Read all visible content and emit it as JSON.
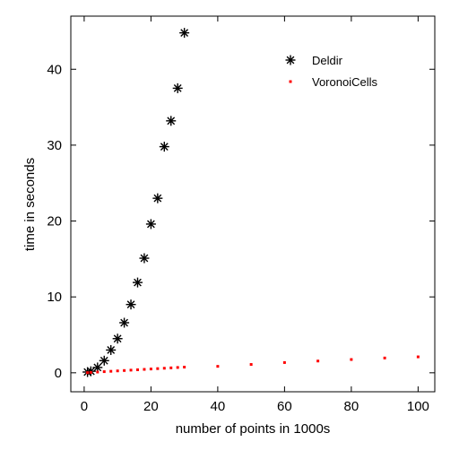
{
  "chart_data": {
    "type": "scatter",
    "title": "",
    "xlabel": "number of points in 1000s",
    "ylabel": "time in seconds",
    "xlim": [
      -4,
      105
    ],
    "ylim": [
      -2.5,
      47
    ],
    "xticks": [
      0,
      20,
      40,
      60,
      80,
      100
    ],
    "yticks": [
      0,
      10,
      20,
      30,
      40
    ],
    "grid": false,
    "legend_position": "top-right",
    "series": [
      {
        "name": "Deldir",
        "marker": "asterisk",
        "color": "#000000",
        "x": [
          1,
          2,
          4,
          6,
          8,
          10,
          12,
          14,
          16,
          18,
          20,
          22,
          24,
          26,
          28,
          30
        ],
        "y": [
          0.1,
          0.2,
          0.7,
          1.6,
          3.0,
          4.5,
          6.6,
          9.0,
          11.9,
          15.1,
          19.6,
          23.0,
          29.8,
          33.2,
          37.5,
          44.8
        ]
      },
      {
        "name": "VoronoiCells",
        "marker": "dot",
        "color": "#ff0000",
        "x": [
          1,
          2,
          4,
          6,
          8,
          10,
          12,
          14,
          16,
          18,
          20,
          22,
          24,
          26,
          28,
          30,
          40,
          50,
          60,
          70,
          80,
          90,
          100
        ],
        "y": [
          0.02,
          0.05,
          0.1,
          0.15,
          0.2,
          0.25,
          0.3,
          0.35,
          0.4,
          0.45,
          0.5,
          0.55,
          0.6,
          0.65,
          0.7,
          0.75,
          0.85,
          1.1,
          1.35,
          1.55,
          1.75,
          1.95,
          2.1
        ]
      }
    ]
  }
}
